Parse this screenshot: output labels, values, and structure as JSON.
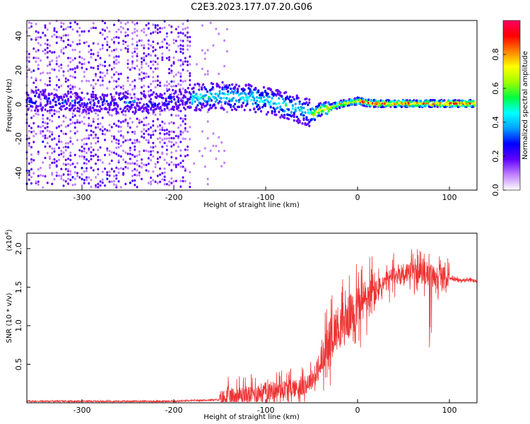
{
  "title": "C2E3.2023.177.07.20.G06",
  "chart_data": [
    {
      "type": "heatmap",
      "xlabel": "Height of straight line (km)",
      "ylabel": "Frequency (Hz)",
      "xlim": [
        -360,
        130
      ],
      "ylim": [
        -50,
        49
      ],
      "xticks": [
        -300,
        -200,
        -100,
        0,
        100
      ],
      "yticks": [
        -40,
        -20,
        0,
        20,
        40
      ],
      "colorbar": {
        "label": "Normalized spectral amplitude",
        "range": [
          0.0,
          1.0
        ],
        "ticks": [
          "0.0",
          "0.2",
          "0.4",
          "0.6",
          "0.8"
        ],
        "colors": [
          "#ffffff",
          "#c080ff",
          "#6000ff",
          "#0000ff",
          "#00a0ff",
          "#00ffff",
          "#00ff40",
          "#a0ff00",
          "#ffff00",
          "#ff8000",
          "#ff0000",
          "#ff0060"
        ]
      },
      "ridge": {
        "description_points_x": [
          -360,
          -230,
          -180,
          -150,
          -120,
          -90,
          -70,
          -55,
          -48,
          -40,
          -30,
          -20,
          -10,
          0,
          10,
          20,
          130
        ],
        "description_points_y": [
          2,
          1,
          4,
          5,
          4,
          1,
          -2,
          -4,
          -6,
          -3,
          -2,
          0,
          1,
          2,
          1,
          0.5,
          0.5
        ]
      }
    },
    {
      "type": "line",
      "xlabel": "Height of straight line (km)",
      "ylabel": "SNR (10 * v/v)",
      "multiplier": "(x10",
      "multiplier_exp": "4",
      "multiplier_close": ")",
      "xlim": [
        -360,
        130
      ],
      "ylim": [
        0.0,
        2.2
      ],
      "xticks": [
        -300,
        -200,
        -100,
        0,
        100
      ],
      "yticks": [
        "0.5",
        "1.0",
        "1.5",
        "2.0"
      ],
      "color": "#ee3333",
      "envelope": {
        "x": [
          -360,
          -200,
          -150,
          -140,
          -120,
          -100,
          -80,
          -60,
          -45,
          -35,
          -28,
          -20,
          -10,
          0,
          10,
          20,
          30,
          40,
          55,
          70,
          85,
          95,
          105,
          130
        ],
        "y": [
          0.02,
          0.02,
          0.04,
          0.08,
          0.1,
          0.15,
          0.18,
          0.2,
          0.35,
          0.6,
          0.9,
          1.0,
          1.1,
          1.25,
          1.35,
          1.45,
          1.55,
          1.65,
          1.7,
          1.68,
          1.65,
          1.62,
          1.6,
          1.58
        ]
      }
    }
  ]
}
